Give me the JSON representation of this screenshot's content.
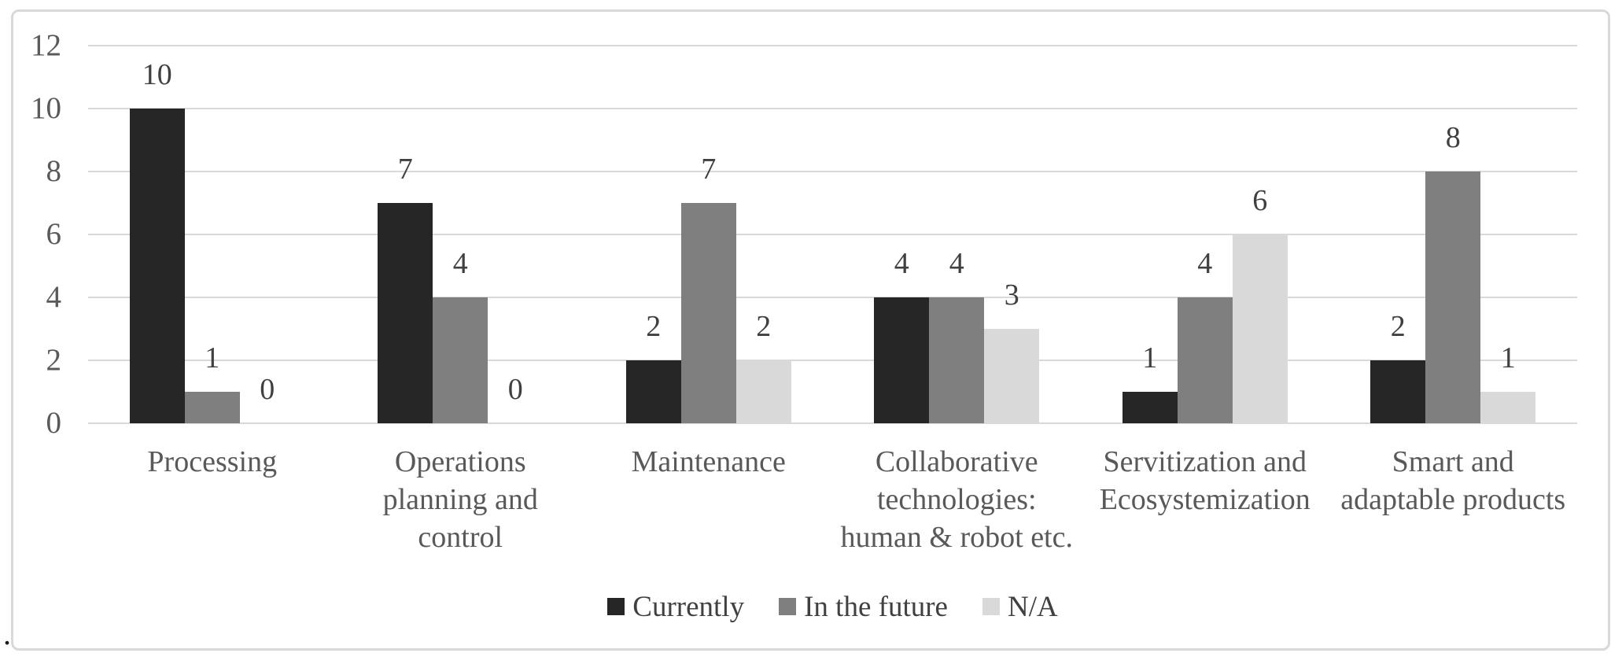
{
  "stray_period": ".",
  "chart_data": {
    "type": "bar",
    "title": "",
    "xlabel": "",
    "ylabel": "",
    "categories": [
      "Processing",
      "Operations planning and control",
      "Maintenance",
      "Collaborative technologies: human & robot etc.",
      "Servitization and Ecosystemization",
      "Smart and adaptable products"
    ],
    "categories_wrapped": [
      "Processing",
      "Operations\nplanning and\ncontrol",
      "Maintenance",
      "Collaborative\ntechnologies:\nhuman & robot etc.",
      "Servitization and\nEcosystemization",
      "Smart and\nadaptable products"
    ],
    "series": [
      {
        "name": "Currently",
        "color": "#262626",
        "values": [
          10,
          7,
          2,
          4,
          1,
          2
        ]
      },
      {
        "name": "In the future",
        "color": "#7f7f7f",
        "values": [
          1,
          4,
          7,
          4,
          4,
          8
        ]
      },
      {
        "name": "N/A",
        "color": "#d9d9d9",
        "values": [
          0,
          0,
          2,
          3,
          6,
          1
        ]
      }
    ],
    "ylim": [
      0,
      12
    ],
    "yticks": [
      0,
      2,
      4,
      6,
      8,
      10,
      12
    ],
    "grid": "horizontal",
    "gridline_color": "#d9d9d9",
    "frame_color": "#d9d9d9",
    "tick_label_color": "#595959",
    "category_label_color": "#595959",
    "value_label_color": "#404040",
    "legend_text_color": "#404040",
    "legend_position": "bottom",
    "value_labels_shown": true
  }
}
